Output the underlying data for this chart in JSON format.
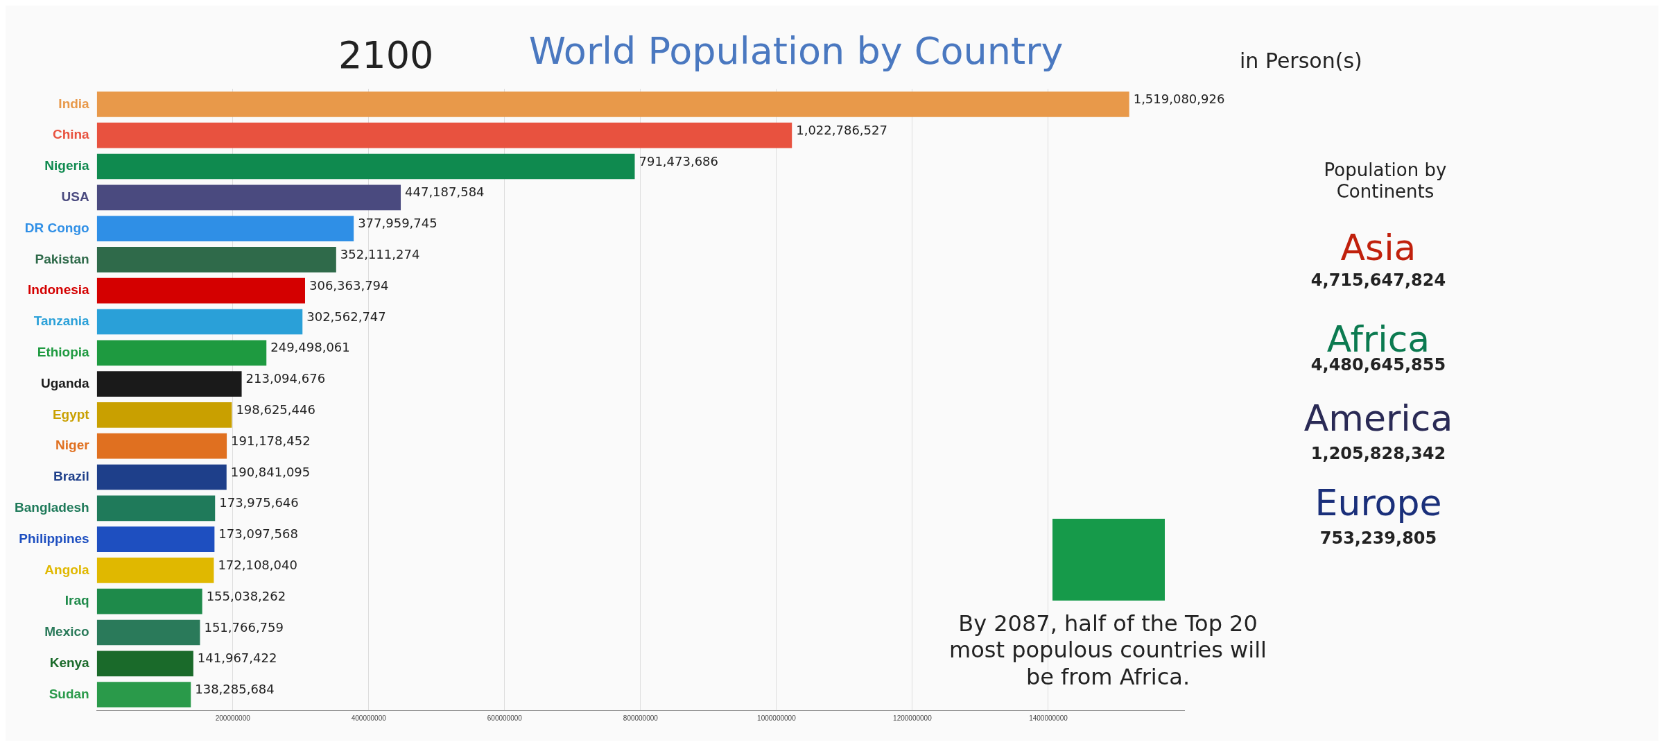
{
  "chart_data": {
    "type": "bar",
    "orientation": "horizontal",
    "title": "World Population by Country",
    "categories": [
      "India",
      "China",
      "Nigeria",
      "USA",
      "DR Congo",
      "Pakistan",
      "Indonesia",
      "Tanzania",
      "Ethiopia",
      "Uganda",
      "Egypt",
      "Niger",
      "Brazil",
      "Bangladesh",
      "Philippines",
      "Angola",
      "Iraq",
      "Mexico",
      "Kenya",
      "Sudan"
    ],
    "values": [
      1519080926,
      1022786527,
      791473686,
      447187584,
      377959745,
      352111274,
      306363794,
      302562747,
      249498061,
      213094676,
      198625446,
      191178452,
      190841095,
      173975646,
      173097568,
      172108040,
      155038262,
      151766759,
      141967422,
      138285684
    ],
    "value_labels": [
      "1,519,080,926",
      "1,022,786,527",
      "791,473,686",
      "447,187,584",
      "377,959,745",
      "352,111,274",
      "306,363,794",
      "302,562,747",
      "249,498,061",
      "213,094,676",
      "198,625,446",
      "191,178,452",
      "190,841,095",
      "173,975,646",
      "173,097,568",
      "172,108,040",
      "155,038,262",
      "151,766,759",
      "141,967,422",
      "138,285,684"
    ],
    "colors": [
      "#e8994a",
      "#e8523f",
      "#0f8a4f",
      "#4a4a7f",
      "#2f8fe6",
      "#2f6a4a",
      "#d40000",
      "#2aa0d8",
      "#1e9a40",
      "#1a1a1a",
      "#c9a000",
      "#e07020",
      "#1e3f8a",
      "#1f7a5a",
      "#1e4fc0",
      "#e0b800",
      "#1e8a4a",
      "#2a7a5a",
      "#1a6a2a",
      "#2a9a4a"
    ],
    "xlim": [
      0,
      1600000000
    ],
    "xticks": [
      200000000,
      400000000,
      600000000,
      800000000,
      1000000000,
      1200000000,
      1400000000
    ],
    "grid": "x",
    "legend": false,
    "annotations": [
      "2100",
      "in Person(s)",
      "Population by Continents",
      "Asia",
      "4,715,647,824",
      "Africa",
      "4,480,645,855",
      "America",
      "1,205,828,342",
      "Europe",
      "753,239,805",
      "By 2087, half of the Top 20 most populous countries will be from Africa."
    ]
  }
}
